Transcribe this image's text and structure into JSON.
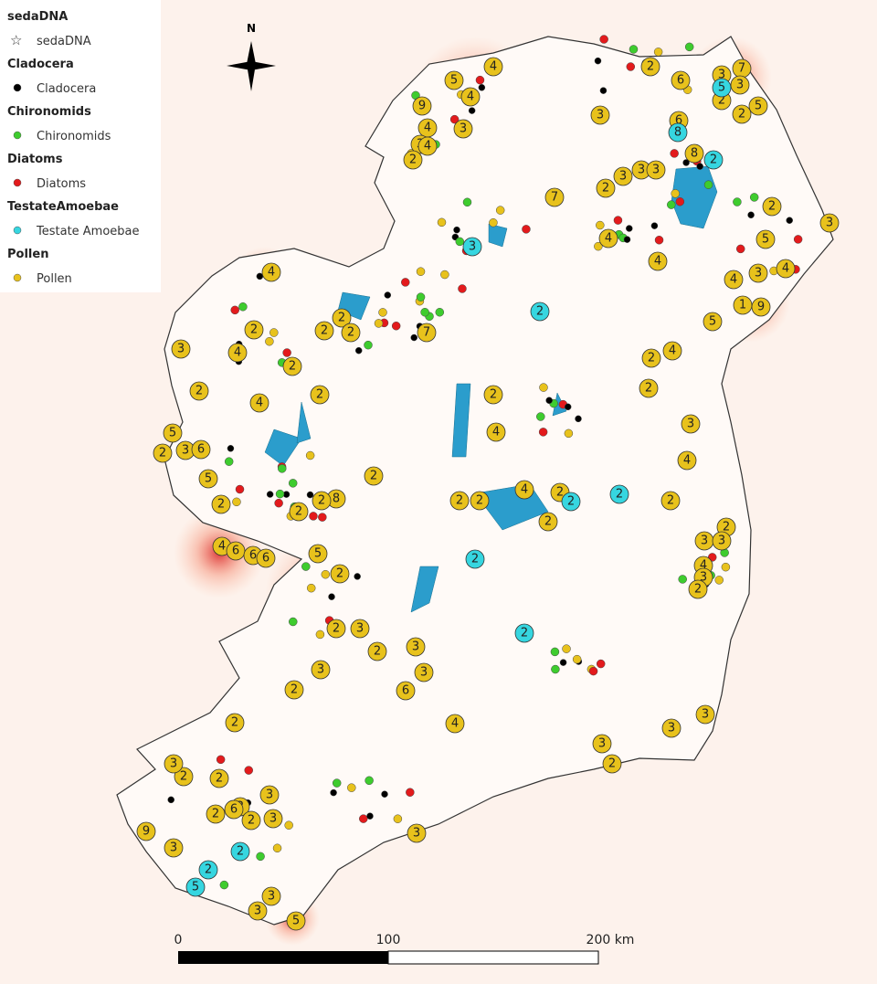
{
  "legend": {
    "groups": [
      {
        "title": "sedaDNA",
        "label": "sedaDNA",
        "color": "none"
      },
      {
        "title": "Cladocera",
        "label": "Cladocera",
        "color": "#000000"
      },
      {
        "title": "Chironomids",
        "label": "Chironomids",
        "color": "#3ecc2e"
      },
      {
        "title": "Diatoms",
        "label": "Diatoms",
        "color": "#e31a1c"
      },
      {
        "title": "TestateAmoebae",
        "label": "Testate Amoebae",
        "color": "#36d6e0"
      },
      {
        "title": "Pollen",
        "label": "Pollen",
        "color": "#e8c21c"
      }
    ]
  },
  "north": "N",
  "scale_bar": {
    "labels": [
      "0",
      "100",
      "200 km"
    ]
  },
  "pollen_clusters": [
    4,
    5,
    4,
    9,
    4,
    3,
    3,
    4,
    2,
    2,
    6,
    3,
    3,
    7,
    3,
    2,
    5,
    2,
    6,
    8,
    3,
    3,
    3,
    2,
    7,
    2,
    3,
    5,
    4,
    4,
    4,
    3,
    4,
    1,
    9,
    5,
    4,
    2,
    2,
    4,
    2,
    4,
    3,
    2,
    2,
    4,
    2,
    5,
    3,
    6,
    2,
    5,
    2,
    2,
    2,
    4,
    2,
    2,
    4,
    2,
    2,
    2,
    4,
    3,
    2,
    3,
    3,
    4,
    3,
    2,
    4,
    6,
    6,
    6,
    5,
    8,
    2,
    2,
    2,
    3,
    2,
    2,
    3,
    3,
    2,
    3,
    6,
    4,
    2,
    3,
    3,
    3,
    2,
    2,
    2,
    3,
    2,
    2,
    6,
    3,
    3,
    2,
    9,
    3,
    3,
    3,
    3,
    5,
    7,
    2,
    2,
    2
  ],
  "testate_clusters": [
    5,
    8,
    2,
    3,
    2,
    2,
    2,
    2,
    2,
    2,
    2,
    5
  ]
}
